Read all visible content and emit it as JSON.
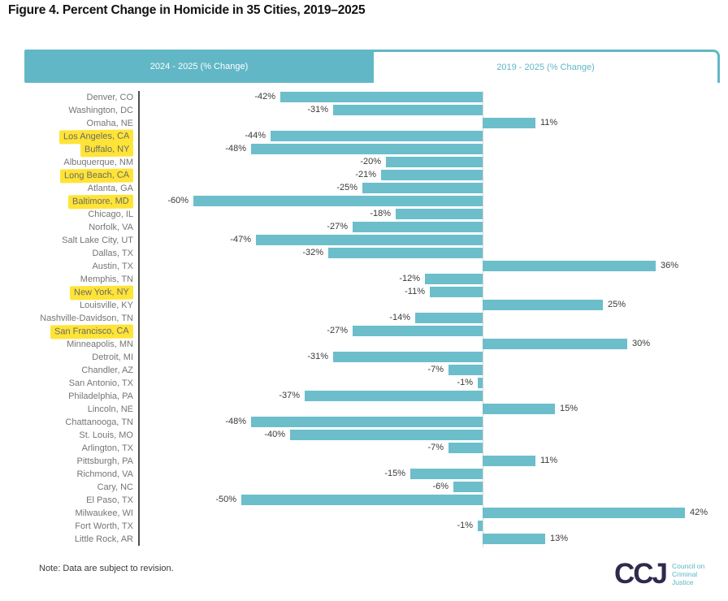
{
  "title": "Figure 4. Percent Change in Homicide in 35 Cities, 2019–2025",
  "tabs": [
    {
      "label": "2024 - 2025 (% Change)",
      "active": true
    },
    {
      "label": "2019 - 2025 (% Change)",
      "active": false
    }
  ],
  "note": "Note: Data are subject to revision.",
  "logo": {
    "acronym": "CCJ",
    "caption_lines": [
      "Council on",
      "Criminal",
      "Justice"
    ]
  },
  "colors": {
    "bar": "#6cbecb",
    "tab_active_bg": "#62b7c6",
    "tab_inactive_text": "#5fb7c6",
    "highlight_yellow": "#ffe437",
    "logo_navy": "#2f2a4d",
    "logo_teal": "#56b7c4"
  },
  "chart_data": {
    "type": "bar",
    "orientation": "horizontal",
    "title": "Figure 4. Percent Change in Homicide in 35 Cities, 2019–2025",
    "value_unit": "%",
    "xlim": [
      -60,
      42
    ],
    "grid": false,
    "legend": "none",
    "cities": [
      {
        "name": "Denver, CO",
        "value": -42,
        "label": "-42%",
        "highlight": false
      },
      {
        "name": "Washington, DC",
        "value": -31,
        "label": "-31%",
        "highlight": false
      },
      {
        "name": "Omaha, NE",
        "value": 11,
        "label": "11%",
        "highlight": false
      },
      {
        "name": "Los Angeles, CA",
        "value": -44,
        "label": "-44%",
        "highlight": true
      },
      {
        "name": "Buffalo, NY",
        "value": -48,
        "label": "-48%",
        "highlight": true
      },
      {
        "name": "Albuquerque, NM",
        "value": -20,
        "label": "-20%",
        "highlight": false
      },
      {
        "name": "Long Beach, CA",
        "value": -21,
        "label": "-21%",
        "highlight": true
      },
      {
        "name": "Atlanta, GA",
        "value": -25,
        "label": "-25%",
        "highlight": false
      },
      {
        "name": "Baltimore, MD",
        "value": -60,
        "label": "-60%",
        "highlight": true
      },
      {
        "name": "Chicago, IL",
        "value": -18,
        "label": "-18%",
        "highlight": false
      },
      {
        "name": "Norfolk, VA",
        "value": -27,
        "label": "-27%",
        "highlight": false
      },
      {
        "name": "Salt Lake City, UT",
        "value": -47,
        "label": "-47%",
        "highlight": false
      },
      {
        "name": "Dallas, TX",
        "value": -32,
        "label": "-32%",
        "highlight": false
      },
      {
        "name": "Austin, TX",
        "value": 36,
        "label": "36%",
        "highlight": false
      },
      {
        "name": "Memphis, TN",
        "value": -12,
        "label": "-12%",
        "highlight": false
      },
      {
        "name": "New York, NY",
        "value": -11,
        "label": "-11%",
        "highlight": true
      },
      {
        "name": "Louisville, KY",
        "value": 25,
        "label": "25%",
        "highlight": false
      },
      {
        "name": "Nashville-Davidson, TN",
        "value": -14,
        "label": "-14%",
        "highlight": false
      },
      {
        "name": "San Francisco, CA",
        "value": -27,
        "label": "-27%",
        "highlight": true
      },
      {
        "name": "Minneapolis, MN",
        "value": 30,
        "label": "30%",
        "highlight": false
      },
      {
        "name": "Detroit, MI",
        "value": -31,
        "label": "-31%",
        "highlight": false
      },
      {
        "name": "Chandler, AZ",
        "value": -7,
        "label": "-7%",
        "highlight": false
      },
      {
        "name": "San Antonio, TX",
        "value": -1,
        "label": "-1%",
        "highlight": false
      },
      {
        "name": "Philadelphia, PA",
        "value": -37,
        "label": "-37%",
        "highlight": false
      },
      {
        "name": "Lincoln, NE",
        "value": 15,
        "label": "15%",
        "highlight": false
      },
      {
        "name": "Chattanooga, TN",
        "value": -48,
        "label": "-48%",
        "highlight": false
      },
      {
        "name": "St. Louis, MO",
        "value": -40,
        "label": "-40%",
        "highlight": false
      },
      {
        "name": "Arlington, TX",
        "value": -7,
        "label": "-7%",
        "highlight": false
      },
      {
        "name": "Pittsburgh, PA",
        "value": 11,
        "label": "11%",
        "highlight": false
      },
      {
        "name": "Richmond, VA",
        "value": -15,
        "label": "-15%",
        "highlight": false
      },
      {
        "name": "Cary, NC",
        "value": -6,
        "label": "-6%",
        "highlight": false
      },
      {
        "name": "El Paso, TX",
        "value": -50,
        "label": "-50%",
        "highlight": false
      },
      {
        "name": "Milwaukee, WI",
        "value": 42,
        "label": "42%",
        "highlight": false
      },
      {
        "name": "Fort Worth, TX",
        "value": -1,
        "label": "-1%",
        "highlight": false
      },
      {
        "name": "Little Rock, AR",
        "value": 13,
        "label": "13%",
        "highlight": false
      }
    ]
  }
}
